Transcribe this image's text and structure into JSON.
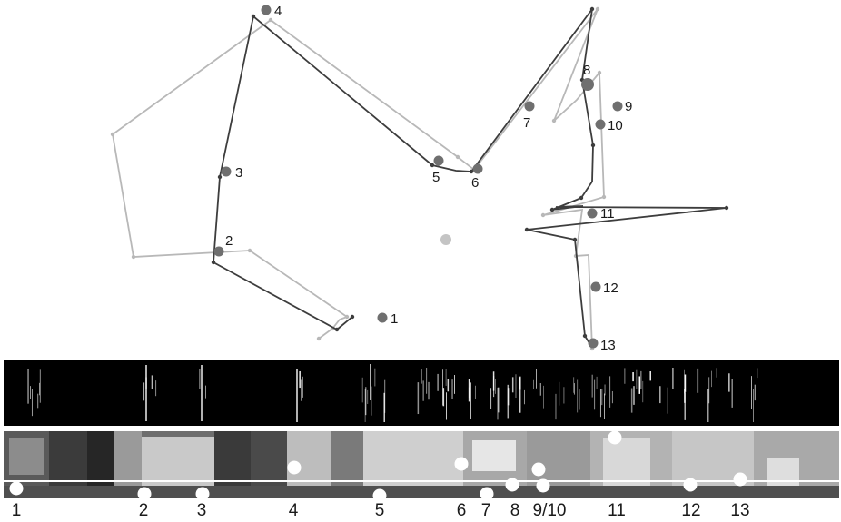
{
  "landmarks": [
    {
      "id": "1",
      "label": "1"
    },
    {
      "id": "2",
      "label": "2"
    },
    {
      "id": "3",
      "label": "3"
    },
    {
      "id": "4",
      "label": "4"
    },
    {
      "id": "5",
      "label": "5"
    },
    {
      "id": "6",
      "label": "6"
    },
    {
      "id": "7",
      "label": "7"
    },
    {
      "id": "8",
      "label": "8"
    },
    {
      "id": "9",
      "label": "9"
    },
    {
      "id": "10",
      "label": "10"
    },
    {
      "id": "11",
      "label": "11"
    },
    {
      "id": "12",
      "label": "12"
    },
    {
      "id": "13",
      "label": "13"
    }
  ],
  "panorama_labels": [
    "1",
    "2",
    "3",
    "4",
    "5",
    "6",
    "7",
    "8",
    "9/10",
    "11",
    "12",
    "13"
  ],
  "colors": {
    "landmark": "#6f6f6f",
    "path_dark": "#3d3d3d",
    "path_light": "#b8b8b8",
    "center_marker": "#c4c4c4",
    "strip_background": "#000000",
    "strip_lines": "#ffffff",
    "panorama_markers": "#ffffff"
  }
}
